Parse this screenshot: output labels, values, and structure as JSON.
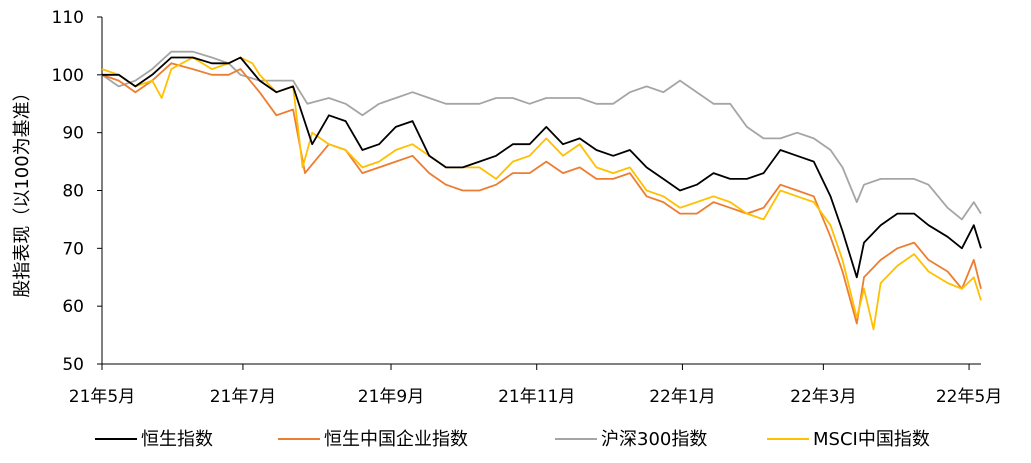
{
  "chart_data": {
    "type": "line",
    "title": "",
    "xlabel": "",
    "ylabel": "股指表现（以100为基准）",
    "ylim": [
      50,
      110
    ],
    "yticks": [
      50,
      60,
      70,
      80,
      90,
      100,
      110
    ],
    "x_range": [
      "2021-05-03",
      "2022-05-06"
    ],
    "x_ticks": [
      {
        "label": "21年5月",
        "date": "2021-05-01"
      },
      {
        "label": "21年7月",
        "date": "2021-07-01"
      },
      {
        "label": "21年9月",
        "date": "2021-09-01"
      },
      {
        "label": "21年11月",
        "date": "2021-11-01"
      },
      {
        "label": "22年1月",
        "date": "2022-01-01"
      },
      {
        "label": "22年3月",
        "date": "2022-03-01"
      },
      {
        "label": "22年5月",
        "date": "2022-05-01"
      }
    ],
    "grid": false,
    "legend_position": "bottom",
    "series": [
      {
        "name": "恒生指数",
        "color": "#000000",
        "points": [
          [
            "2021-05-03",
            100
          ],
          [
            "2021-05-10",
            100
          ],
          [
            "2021-05-17",
            98
          ],
          [
            "2021-05-24",
            100
          ],
          [
            "2021-06-01",
            103
          ],
          [
            "2021-06-10",
            103
          ],
          [
            "2021-06-18",
            102
          ],
          [
            "2021-06-25",
            102
          ],
          [
            "2021-06-30",
            103
          ],
          [
            "2021-07-08",
            99
          ],
          [
            "2021-07-15",
            97
          ],
          [
            "2021-07-22",
            98
          ],
          [
            "2021-07-30",
            88
          ],
          [
            "2021-08-06",
            93
          ],
          [
            "2021-08-13",
            92
          ],
          [
            "2021-08-20",
            87
          ],
          [
            "2021-08-27",
            88
          ],
          [
            "2021-09-03",
            91
          ],
          [
            "2021-09-10",
            92
          ],
          [
            "2021-09-17",
            86
          ],
          [
            "2021-09-24",
            84
          ],
          [
            "2021-10-01",
            84
          ],
          [
            "2021-10-08",
            85
          ],
          [
            "2021-10-15",
            86
          ],
          [
            "2021-10-22",
            88
          ],
          [
            "2021-10-29",
            88
          ],
          [
            "2021-11-05",
            91
          ],
          [
            "2021-11-12",
            88
          ],
          [
            "2021-11-19",
            89
          ],
          [
            "2021-11-26",
            87
          ],
          [
            "2021-12-03",
            86
          ],
          [
            "2021-12-10",
            87
          ],
          [
            "2021-12-17",
            84
          ],
          [
            "2021-12-24",
            82
          ],
          [
            "2021-12-31",
            80
          ],
          [
            "2022-01-07",
            81
          ],
          [
            "2022-01-14",
            83
          ],
          [
            "2022-01-21",
            82
          ],
          [
            "2022-01-28",
            82
          ],
          [
            "2022-02-04",
            83
          ],
          [
            "2022-02-11",
            87
          ],
          [
            "2022-02-18",
            86
          ],
          [
            "2022-02-25",
            85
          ],
          [
            "2022-03-04",
            79
          ],
          [
            "2022-03-09",
            73
          ],
          [
            "2022-03-15",
            65
          ],
          [
            "2022-03-18",
            71
          ],
          [
            "2022-03-25",
            74
          ],
          [
            "2022-04-01",
            76
          ],
          [
            "2022-04-08",
            76
          ],
          [
            "2022-04-14",
            74
          ],
          [
            "2022-04-22",
            72
          ],
          [
            "2022-04-28",
            70
          ],
          [
            "2022-05-03",
            74
          ],
          [
            "2022-05-06",
            70
          ]
        ]
      },
      {
        "name": "恒生中国企业指数",
        "color": "#ED7D31",
        "points": [
          [
            "2021-05-03",
            100
          ],
          [
            "2021-05-10",
            99
          ],
          [
            "2021-05-17",
            97
          ],
          [
            "2021-05-24",
            99
          ],
          [
            "2021-06-01",
            102
          ],
          [
            "2021-06-10",
            101
          ],
          [
            "2021-06-18",
            100
          ],
          [
            "2021-06-25",
            100
          ],
          [
            "2021-06-30",
            101
          ],
          [
            "2021-07-08",
            97
          ],
          [
            "2021-07-15",
            93
          ],
          [
            "2021-07-22",
            94
          ],
          [
            "2021-07-27",
            83
          ],
          [
            "2021-08-06",
            88
          ],
          [
            "2021-08-13",
            87
          ],
          [
            "2021-08-20",
            83
          ],
          [
            "2021-08-27",
            84
          ],
          [
            "2021-09-03",
            85
          ],
          [
            "2021-09-10",
            86
          ],
          [
            "2021-09-17",
            83
          ],
          [
            "2021-09-24",
            81
          ],
          [
            "2021-10-01",
            80
          ],
          [
            "2021-10-08",
            80
          ],
          [
            "2021-10-15",
            81
          ],
          [
            "2021-10-22",
            83
          ],
          [
            "2021-10-29",
            83
          ],
          [
            "2021-11-05",
            85
          ],
          [
            "2021-11-12",
            83
          ],
          [
            "2021-11-19",
            84
          ],
          [
            "2021-11-26",
            82
          ],
          [
            "2021-12-03",
            82
          ],
          [
            "2021-12-10",
            83
          ],
          [
            "2021-12-17",
            79
          ],
          [
            "2021-12-24",
            78
          ],
          [
            "2021-12-31",
            76
          ],
          [
            "2022-01-07",
            76
          ],
          [
            "2022-01-14",
            78
          ],
          [
            "2022-01-21",
            77
          ],
          [
            "2022-01-28",
            76
          ],
          [
            "2022-02-04",
            77
          ],
          [
            "2022-02-11",
            81
          ],
          [
            "2022-02-18",
            80
          ],
          [
            "2022-02-25",
            79
          ],
          [
            "2022-03-04",
            72
          ],
          [
            "2022-03-09",
            66
          ],
          [
            "2022-03-15",
            57
          ],
          [
            "2022-03-18",
            65
          ],
          [
            "2022-03-25",
            68
          ],
          [
            "2022-04-01",
            70
          ],
          [
            "2022-04-08",
            71
          ],
          [
            "2022-04-14",
            68
          ],
          [
            "2022-04-22",
            66
          ],
          [
            "2022-04-28",
            63
          ],
          [
            "2022-05-03",
            68
          ],
          [
            "2022-05-06",
            63
          ]
        ]
      },
      {
        "name": "沪深300指数",
        "color": "#A5A5A5",
        "points": [
          [
            "2021-05-03",
            100
          ],
          [
            "2021-05-10",
            98
          ],
          [
            "2021-05-17",
            99
          ],
          [
            "2021-05-24",
            101
          ],
          [
            "2021-06-01",
            104
          ],
          [
            "2021-06-10",
            104
          ],
          [
            "2021-06-18",
            103
          ],
          [
            "2021-06-25",
            102
          ],
          [
            "2021-06-30",
            100
          ],
          [
            "2021-07-08",
            99
          ],
          [
            "2021-07-15",
            99
          ],
          [
            "2021-07-22",
            99
          ],
          [
            "2021-07-28",
            95
          ],
          [
            "2021-08-06",
            96
          ],
          [
            "2021-08-13",
            95
          ],
          [
            "2021-08-20",
            93
          ],
          [
            "2021-08-27",
            95
          ],
          [
            "2021-09-03",
            96
          ],
          [
            "2021-09-10",
            97
          ],
          [
            "2021-09-17",
            96
          ],
          [
            "2021-09-24",
            95
          ],
          [
            "2021-10-01",
            95
          ],
          [
            "2021-10-08",
            95
          ],
          [
            "2021-10-15",
            96
          ],
          [
            "2021-10-22",
            96
          ],
          [
            "2021-10-29",
            95
          ],
          [
            "2021-11-05",
            96
          ],
          [
            "2021-11-12",
            96
          ],
          [
            "2021-11-19",
            96
          ],
          [
            "2021-11-26",
            95
          ],
          [
            "2021-12-03",
            95
          ],
          [
            "2021-12-10",
            97
          ],
          [
            "2021-12-17",
            98
          ],
          [
            "2021-12-24",
            97
          ],
          [
            "2021-12-31",
            99
          ],
          [
            "2022-01-07",
            97
          ],
          [
            "2022-01-14",
            95
          ],
          [
            "2022-01-21",
            95
          ],
          [
            "2022-01-28",
            91
          ],
          [
            "2022-02-04",
            89
          ],
          [
            "2022-02-11",
            89
          ],
          [
            "2022-02-18",
            90
          ],
          [
            "2022-02-25",
            89
          ],
          [
            "2022-03-04",
            87
          ],
          [
            "2022-03-09",
            84
          ],
          [
            "2022-03-15",
            78
          ],
          [
            "2022-03-18",
            81
          ],
          [
            "2022-03-25",
            82
          ],
          [
            "2022-04-01",
            82
          ],
          [
            "2022-04-08",
            82
          ],
          [
            "2022-04-14",
            81
          ],
          [
            "2022-04-22",
            77
          ],
          [
            "2022-04-28",
            75
          ],
          [
            "2022-05-03",
            78
          ],
          [
            "2022-05-06",
            76
          ]
        ]
      },
      {
        "name": "MSCI中国指数",
        "color": "#FFC000",
        "points": [
          [
            "2021-05-03",
            101
          ],
          [
            "2021-05-10",
            100
          ],
          [
            "2021-05-17",
            98
          ],
          [
            "2021-05-24",
            99
          ],
          [
            "2021-05-28",
            96
          ],
          [
            "2021-06-01",
            101
          ],
          [
            "2021-06-10",
            103
          ],
          [
            "2021-06-18",
            101
          ],
          [
            "2021-06-25",
            102
          ],
          [
            "2021-06-30",
            103
          ],
          [
            "2021-07-05",
            102
          ],
          [
            "2021-07-08",
            100
          ],
          [
            "2021-07-15",
            97
          ],
          [
            "2021-07-22",
            98
          ],
          [
            "2021-07-26",
            84
          ],
          [
            "2021-07-30",
            90
          ],
          [
            "2021-08-06",
            88
          ],
          [
            "2021-08-13",
            87
          ],
          [
            "2021-08-20",
            84
          ],
          [
            "2021-08-27",
            85
          ],
          [
            "2021-09-03",
            87
          ],
          [
            "2021-09-10",
            88
          ],
          [
            "2021-09-17",
            86
          ],
          [
            "2021-09-24",
            84
          ],
          [
            "2021-10-01",
            84
          ],
          [
            "2021-10-08",
            84
          ],
          [
            "2021-10-15",
            82
          ],
          [
            "2021-10-22",
            85
          ],
          [
            "2021-10-29",
            86
          ],
          [
            "2021-11-05",
            89
          ],
          [
            "2021-11-12",
            86
          ],
          [
            "2021-11-19",
            88
          ],
          [
            "2021-11-26",
            84
          ],
          [
            "2021-12-03",
            83
          ],
          [
            "2021-12-10",
            84
          ],
          [
            "2021-12-17",
            80
          ],
          [
            "2021-12-24",
            79
          ],
          [
            "2021-12-31",
            77
          ],
          [
            "2022-01-07",
            78
          ],
          [
            "2022-01-14",
            79
          ],
          [
            "2022-01-21",
            78
          ],
          [
            "2022-01-28",
            76
          ],
          [
            "2022-02-04",
            75
          ],
          [
            "2022-02-11",
            80
          ],
          [
            "2022-02-18",
            79
          ],
          [
            "2022-02-25",
            78
          ],
          [
            "2022-03-04",
            74
          ],
          [
            "2022-03-09",
            68
          ],
          [
            "2022-03-15",
            58
          ],
          [
            "2022-03-18",
            63
          ],
          [
            "2022-03-22",
            56
          ],
          [
            "2022-03-25",
            64
          ],
          [
            "2022-04-01",
            67
          ],
          [
            "2022-04-08",
            69
          ],
          [
            "2022-04-14",
            66
          ],
          [
            "2022-04-22",
            64
          ],
          [
            "2022-04-28",
            63
          ],
          [
            "2022-05-03",
            65
          ],
          [
            "2022-05-06",
            61
          ]
        ]
      }
    ]
  }
}
